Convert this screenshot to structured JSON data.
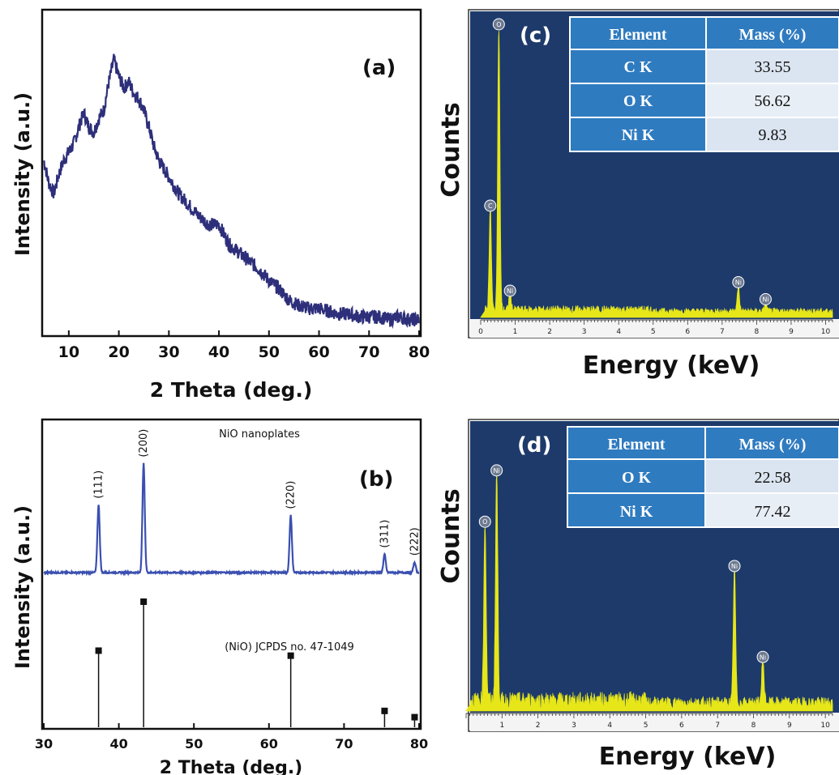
{
  "chart_data": [
    {
      "panel": "(a)",
      "type": "line",
      "xlabel": "2 Theta (deg.)",
      "ylabel": "Intensity (a.u.)",
      "xlim": [
        5,
        80
      ],
      "x_ticks": [
        10,
        20,
        30,
        40,
        50,
        60,
        70,
        80
      ],
      "color": "#2e2f7a",
      "series": [
        {
          "x": [
            5,
            6,
            7,
            8,
            9,
            10,
            11,
            12,
            13,
            14,
            15,
            16,
            17,
            18,
            19,
            20,
            21,
            22,
            23,
            24,
            25,
            26,
            27,
            28,
            29,
            30,
            32,
            34,
            36,
            38,
            40,
            42,
            44,
            46,
            48,
            50,
            52,
            54,
            56,
            58,
            60,
            62,
            64,
            66,
            68,
            70,
            72,
            74,
            76,
            78,
            80
          ],
          "values": [
            0.6,
            0.52,
            0.48,
            0.55,
            0.6,
            0.63,
            0.66,
            0.72,
            0.77,
            0.72,
            0.7,
            0.75,
            0.78,
            0.88,
            0.96,
            0.9,
            0.86,
            0.88,
            0.84,
            0.82,
            0.78,
            0.72,
            0.65,
            0.6,
            0.57,
            0.54,
            0.48,
            0.44,
            0.4,
            0.37,
            0.37,
            0.3,
            0.27,
            0.24,
            0.21,
            0.17,
            0.14,
            0.1,
            0.08,
            0.07,
            0.07,
            0.06,
            0.05,
            0.05,
            0.04,
            0.04,
            0.04,
            0.03,
            0.04,
            0.03,
            0.03
          ]
        }
      ]
    },
    {
      "panel": "(b)",
      "type": "line",
      "title": "NiO nanoplates",
      "xlabel": "2 Theta (deg.)",
      "ylabel": "Intensity (a.u.)",
      "xlim": [
        30,
        80
      ],
      "x_ticks": [
        30,
        40,
        50,
        60,
        70,
        80
      ],
      "pattern_color": "#3a4fb0",
      "peaks": [
        {
          "x": 37.3,
          "height": 0.52,
          "hkl": "(111)"
        },
        {
          "x": 43.3,
          "height": 0.84,
          "hkl": "(200)"
        },
        {
          "x": 62.9,
          "height": 0.44,
          "hkl": "(220)"
        },
        {
          "x": 75.4,
          "height": 0.14,
          "hkl": "(311)"
        },
        {
          "x": 79.4,
          "height": 0.08,
          "hkl": "(222)"
        }
      ],
      "reference": {
        "label": "(NiO) JCPDS no. 47-1049",
        "x": [
          37.3,
          43.3,
          62.9,
          75.4,
          79.4
        ],
        "values": [
          0.61,
          1.0,
          0.57,
          0.13,
          0.08
        ]
      }
    },
    {
      "panel": "(c)",
      "type": "bar",
      "xlabel": "Energy (keV)",
      "ylabel": "Counts",
      "xlim": [
        0,
        10.2
      ],
      "x_ticks": [
        0,
        1,
        2,
        3,
        4,
        5,
        6,
        7,
        8,
        9,
        10
      ],
      "peaks": [
        {
          "element": "C",
          "x": 0.277,
          "height": 0.36
        },
        {
          "element": "O",
          "x": 0.525,
          "height": 1.0
        },
        {
          "element": "Ni",
          "x": 0.85,
          "height": 0.06
        },
        {
          "element": "Ni",
          "x": 7.47,
          "height": 0.09
        },
        {
          "element": "Ni",
          "x": 8.26,
          "height": 0.03
        }
      ],
      "table": {
        "headers": [
          "Element",
          "Mass (%)"
        ],
        "rows": [
          [
            "C K",
            "33.55"
          ],
          [
            "O K",
            "56.62"
          ],
          [
            "Ni K",
            "9.83"
          ]
        ]
      }
    },
    {
      "panel": "(d)",
      "type": "bar",
      "xlabel": "Energy (keV)",
      "ylabel": "Counts",
      "xlim": [
        0,
        10.2
      ],
      "x_ticks": [
        1,
        2,
        3,
        4,
        5,
        6,
        7,
        8,
        9,
        10
      ],
      "peaks": [
        {
          "element": "O",
          "x": 0.525,
          "height": 0.77
        },
        {
          "element": "Ni",
          "x": 0.85,
          "height": 0.99
        },
        {
          "element": "Ni",
          "x": 7.47,
          "height": 0.58
        },
        {
          "element": "Ni",
          "x": 8.26,
          "height": 0.19
        }
      ],
      "table": {
        "headers": [
          "Element",
          "Mass (%)"
        ],
        "rows": [
          [
            "O K",
            "22.58"
          ],
          [
            "Ni K",
            "77.42"
          ]
        ]
      }
    }
  ],
  "colors": {
    "eds_bg": "#1d3a6b",
    "eds_signal": "#e6e619",
    "table_header": "#2f7bc0",
    "table_cell": "#dbe5f1"
  }
}
